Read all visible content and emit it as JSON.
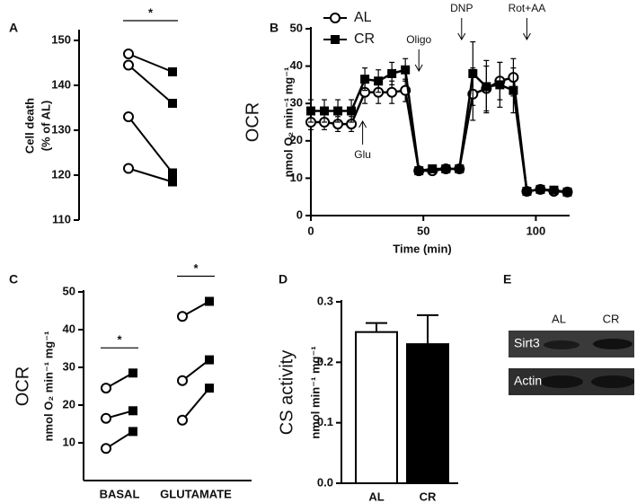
{
  "chart_data": [
    {
      "type": "paired",
      "panel": "A",
      "ylabel": [
        "Cell death",
        "(% of AL)"
      ],
      "values": [
        [
          147,
          143
        ],
        [
          144.5,
          136
        ],
        [
          133,
          120.5
        ],
        [
          121.5,
          118.5
        ]
      ],
      "significance": "*",
      "ylim": [
        110,
        152
      ],
      "yticks": [
        110,
        120,
        130,
        140,
        150
      ]
    },
    {
      "type": "line",
      "panel": "B",
      "title": "OCR",
      "ylabel": "nmol O₂ min⁻¹ mg⁻¹",
      "xlabel": "Time (min)",
      "x": [
        0,
        6,
        12,
        18,
        24,
        30,
        36,
        42,
        48,
        54,
        60,
        66,
        72,
        78,
        84,
        90,
        96,
        102,
        108,
        114
      ],
      "series": [
        {
          "name": "AL",
          "color": "#000000",
          "marker": "circle",
          "values": [
            25,
            25,
            24.5,
            24.5,
            33,
            33,
            33,
            33.5,
            12,
            12,
            12.5,
            12.5,
            32.5,
            34,
            36,
            37,
            6.5,
            7,
            6.5,
            6.3
          ],
          "errors": [
            2,
            2,
            2,
            2,
            3,
            3,
            3,
            3,
            1,
            1,
            1,
            1,
            7,
            6,
            5,
            5,
            1,
            1,
            1,
            1
          ]
        },
        {
          "name": "CR",
          "color": "#000000",
          "marker": "square",
          "values": [
            28,
            28,
            28,
            28,
            36.5,
            36,
            38,
            39,
            12,
            12.5,
            12.5,
            12.5,
            38,
            34.5,
            35,
            33.5,
            6.5,
            7,
            6.8,
            6.3
          ],
          "errors": [
            3,
            3,
            3,
            3,
            3,
            3,
            3,
            3,
            1,
            1,
            1,
            1,
            8.5,
            7,
            6,
            6,
            1,
            1,
            1,
            1
          ]
        }
      ],
      "annotations": [
        {
          "text": "Glu",
          "x": 23,
          "arrow": "up"
        },
        {
          "text": "Oligo",
          "x": 48,
          "arrow": "down"
        },
        {
          "text": "DNP",
          "x": 67,
          "arrow": "down"
        },
        {
          "text": "Rot+AA",
          "x": 96,
          "arrow": "down"
        }
      ],
      "xlim": [
        0,
        115
      ],
      "xticks": [
        0,
        50,
        100
      ],
      "ylim": [
        0,
        50
      ],
      "yticks": [
        0,
        10,
        20,
        30,
        40,
        50
      ],
      "legend": "top-left"
    },
    {
      "type": "paired",
      "panel": "C",
      "title": "OCR",
      "ylabel": "nmol O₂ min⁻¹ mg⁻¹",
      "categories": [
        "BASAL",
        "GLUTAMATE"
      ],
      "values": [
        [
          [
            24.5,
            28.5
          ],
          [
            16.5,
            18.5
          ],
          [
            8.5,
            13
          ]
        ],
        [
          [
            43.5,
            47.5
          ],
          [
            26.5,
            32
          ],
          [
            16,
            24.5
          ]
        ]
      ],
      "significance": [
        "*",
        "*"
      ],
      "ylim": [
        0,
        50
      ],
      "yticks": [
        10,
        20,
        30,
        40,
        50
      ]
    },
    {
      "type": "bar",
      "panel": "D",
      "title": "CS activity",
      "ylabel": "nmol min⁻¹ mg⁻¹",
      "categories": [
        "AL",
        "CR"
      ],
      "values": [
        0.25,
        0.23
      ],
      "errors": [
        0.015,
        0.048
      ],
      "colors": [
        "#ffffff",
        "#000000"
      ],
      "ylim": [
        0,
        0.3
      ],
      "yticks": [
        {
          "value": 0,
          "label": "0.0"
        },
        0.1,
        0.2,
        0.3
      ]
    }
  ],
  "blot": {
    "panel": "E",
    "columns": [
      "AL",
      "CR"
    ],
    "rows": [
      "Sirt3",
      "Actin"
    ]
  }
}
